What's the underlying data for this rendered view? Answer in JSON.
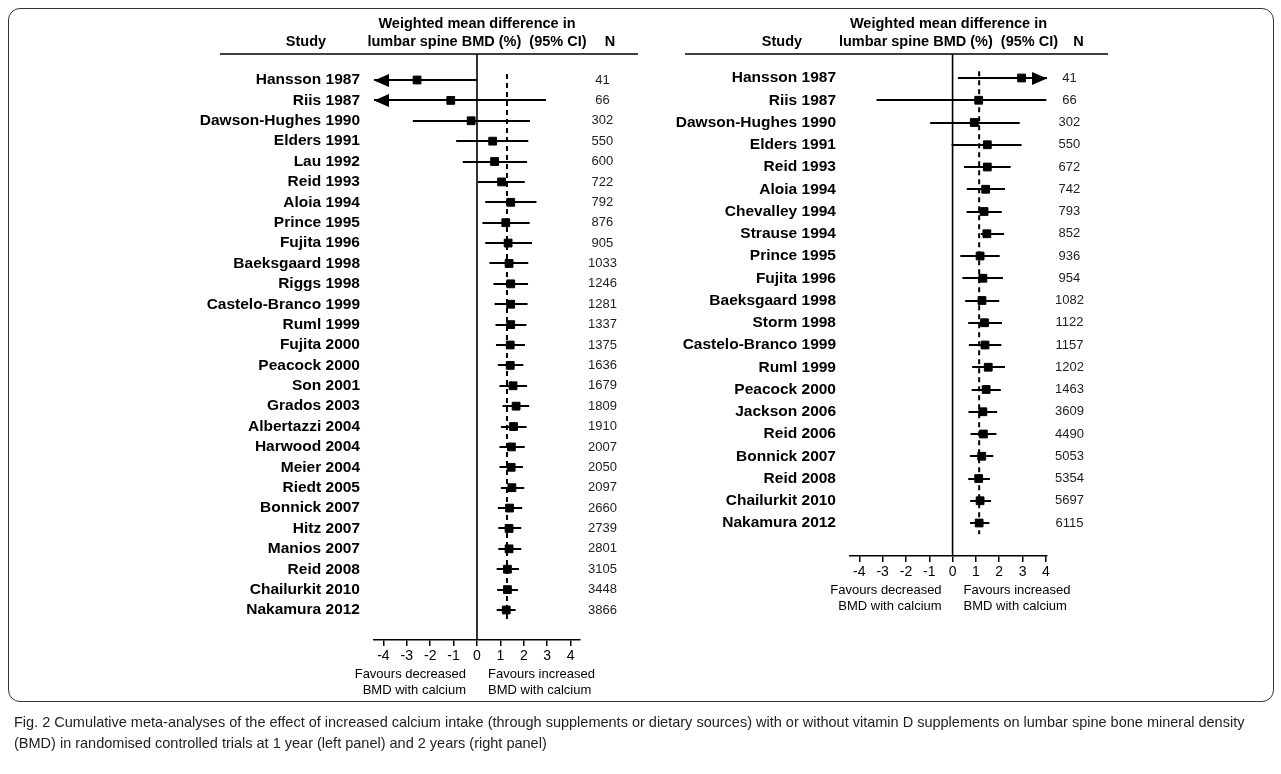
{
  "chart_data": [
    {
      "type": "scatter",
      "orientation": "horizontal",
      "marker": "square",
      "color": "#000000",
      "title": "Weighted mean difference in lumbar spine BMD (%)  (95% CI)",
      "ylabel": "Study",
      "y2label": "N",
      "categories": [
        "Hansson 1987",
        "Riis 1987",
        "Dawson-Hughes 1990",
        "Elders 1991",
        "Lau 1992",
        "Reid 1993",
        "Aloia 1994",
        "Prince 1995",
        "Fujita 1996",
        "Baeksgaard 1998",
        "Riggs 1998",
        "Castelo-Branco 1999",
        "Ruml 1999",
        "Fujita 2000",
        "Peacock 2000",
        "Son 2001",
        "Grados 2003",
        "Albertazzi 2004",
        "Harwood 2004",
        "Meier 2004",
        "Riedt 2005",
        "Bonnick 2007",
        "Hitz 2007",
        "Manios 2007",
        "Reid 2008",
        "Chailurkit 2010",
        "Nakamura 2012"
      ],
      "y2_categories": [
        "41",
        "66",
        "302",
        "550",
        "600",
        "722",
        "792",
        "876",
        "905",
        "1033",
        "1246",
        "1281",
        "1337",
        "1375",
        "1636",
        "1679",
        "1809",
        "1910",
        "2007",
        "2050",
        "2097",
        "2660",
        "2739",
        "2801",
        "3105",
        "3448",
        "3866"
      ],
      "values": [
        -2.56,
        -1.12,
        -0.25,
        0.67,
        0.75,
        1.05,
        1.44,
        1.23,
        1.33,
        1.37,
        1.44,
        1.44,
        1.44,
        1.42,
        1.42,
        1.54,
        1.67,
        1.56,
        1.47,
        1.46,
        1.49,
        1.39,
        1.37,
        1.37,
        1.3,
        1.3,
        1.25
      ],
      "errors": [
        [
          -4.4,
          0.0
        ],
        [
          -4.4,
          2.95
        ],
        [
          -2.74,
          2.26
        ],
        [
          -0.89,
          2.19
        ],
        [
          -0.61,
          2.14
        ],
        [
          0.04,
          2.04
        ],
        [
          0.35,
          2.54
        ],
        [
          0.23,
          2.25
        ],
        [
          0.35,
          2.35
        ],
        [
          0.53,
          2.19
        ],
        [
          0.7,
          2.18
        ],
        [
          0.75,
          2.16
        ],
        [
          0.79,
          2.11
        ],
        [
          0.81,
          2.05
        ],
        [
          0.89,
          1.98
        ],
        [
          0.96,
          2.14
        ],
        [
          1.09,
          2.23
        ],
        [
          1.02,
          2.12
        ],
        [
          0.96,
          2.04
        ],
        [
          0.96,
          1.96
        ],
        [
          1.02,
          2.02
        ],
        [
          0.89,
          1.93
        ],
        [
          0.91,
          1.89
        ],
        [
          0.91,
          1.89
        ],
        [
          0.84,
          1.79
        ],
        [
          0.86,
          1.75
        ],
        [
          0.84,
          1.65
        ]
      ],
      "xlim": [
        -4.4,
        4.4
      ],
      "xticks": [
        -4,
        -3,
        -2,
        -1,
        0,
        1,
        2,
        3,
        4
      ],
      "ref_lines": [
        {
          "axis": "x",
          "value": 0,
          "line_style": "solid"
        },
        {
          "axis": "x",
          "value": 1.28,
          "line_style": "dashed"
        }
      ],
      "annotations": [
        "Favours decreased BMD with calcium",
        "Favours increased BMD with calcium",
        "Fig. 2 Cumulative meta-analyses of the effect of increased calcium intake (through supplements or dietary sources) with or without vitamin D supplements on lumbar spine bone mineral density (BMD) in randomised controlled trials at 1 year (left panel) and 2 years (right panel)"
      ]
    },
    {
      "type": "scatter",
      "orientation": "horizontal",
      "marker": "square",
      "color": "#000000",
      "title": "Weighted mean difference in lumbar spine BMD (%)  (95% CI)",
      "ylabel": "Study",
      "y2label": "N",
      "categories": [
        "Hansson 1987",
        "Riis 1987",
        "Dawson-Hughes 1990",
        "Elders 1991",
        "Reid 1993",
        "Aloia 1994",
        "Chevalley 1994",
        "Strause 1994",
        "Prince 1995",
        "Fujita 1996",
        "Baeksgaard 1998",
        "Storm 1998",
        "Castelo-Branco 1999",
        "Ruml 1999",
        "Peacock 2000",
        "Jackson 2006",
        "Reid 2006",
        "Bonnick 2007",
        "Reid 2008",
        "Chailurkit 2010",
        "Nakamura 2012"
      ],
      "y2_categories": [
        "41",
        "66",
        "302",
        "550",
        "672",
        "742",
        "793",
        "852",
        "936",
        "954",
        "1082",
        "1122",
        "1157",
        "1202",
        "1463",
        "3609",
        "4490",
        "5053",
        "5354",
        "5697",
        "6115"
      ],
      "values": [
        2.96,
        1.12,
        0.93,
        1.49,
        1.49,
        1.42,
        1.35,
        1.47,
        1.18,
        1.3,
        1.26,
        1.37,
        1.39,
        1.53,
        1.44,
        1.3,
        1.32,
        1.25,
        1.12,
        1.18,
        1.14
      ],
      "errors": [
        [
          0.23,
          4.05
        ],
        [
          -3.26,
          4.02
        ],
        [
          -0.96,
          2.88
        ],
        [
          -0.04,
          2.96
        ],
        [
          0.49,
          2.49
        ],
        [
          0.61,
          2.25
        ],
        [
          0.6,
          2.11
        ],
        [
          1.21,
          2.21
        ],
        [
          0.33,
          2.02
        ],
        [
          0.42,
          2.16
        ],
        [
          0.54,
          2.0
        ],
        [
          0.67,
          2.12
        ],
        [
          0.7,
          2.09
        ],
        [
          0.84,
          2.25
        ],
        [
          0.82,
          2.07
        ],
        [
          0.68,
          1.91
        ],
        [
          0.77,
          1.88
        ],
        [
          0.74,
          1.75
        ],
        [
          0.67,
          1.6
        ],
        [
          0.75,
          1.65
        ],
        [
          0.75,
          1.58
        ]
      ],
      "xlim": [
        -4.4,
        4.05
      ],
      "xticks": [
        -4,
        -3,
        -2,
        -1,
        0,
        1,
        2,
        3,
        4
      ],
      "ref_lines": [
        {
          "axis": "x",
          "value": 0,
          "line_style": "solid"
        },
        {
          "axis": "x",
          "value": 1.14,
          "line_style": "dashed"
        }
      ],
      "annotations": [
        "Favours decreased BMD with calcium",
        "Favours increased BMD with calcium"
      ]
    }
  ]
}
